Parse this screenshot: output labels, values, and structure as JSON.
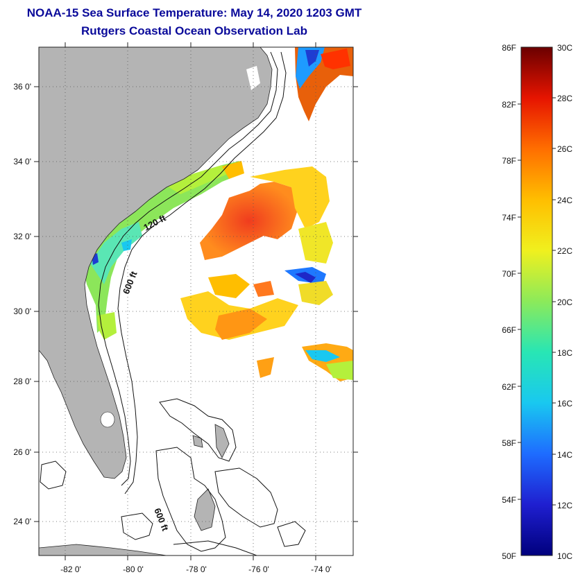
{
  "title_line1": "NOAA-15 Sea Surface Temperature:  May 14, 2020 1203 GMT",
  "title_line2": "Rutgers Coastal Ocean Observation Lab",
  "map": {
    "lon_range": [
      -83.0,
      -72.9
    ],
    "lat_range": [
      23.0,
      37.1
    ],
    "lon_ticks": [
      {
        "value": -82,
        "label": "-82 0'"
      },
      {
        "value": -80,
        "label": "-80 0'"
      },
      {
        "value": -78,
        "label": "-78 0'"
      },
      {
        "value": -76,
        "label": "-76 0'"
      },
      {
        "value": -74,
        "label": "-74 0'"
      }
    ],
    "lat_ticks": [
      {
        "value": 36,
        "label": "36 0'"
      },
      {
        "value": 34,
        "label": "34 0'"
      },
      {
        "value": 32,
        "label": "32 0'"
      },
      {
        "value": 30,
        "label": "30 0'"
      },
      {
        "value": 28,
        "label": "28 0'"
      },
      {
        "value": 26,
        "label": "26 0'"
      },
      {
        "value": 24,
        "label": "24 0'"
      }
    ],
    "grid": "dotted",
    "land_color": "#b4b4b4",
    "isobath_labels": [
      "120 ft",
      "600 ft",
      "600 ft"
    ]
  },
  "colorbar": {
    "fahrenheit_labels": [
      "86F",
      "82F",
      "78F",
      "74F",
      "70F",
      "66F",
      "62F",
      "58F",
      "54F",
      "50F"
    ],
    "celsius_labels": [
      "30C",
      "28C",
      "26C",
      "24C",
      "22C",
      "20C",
      "18C",
      "16C",
      "14C",
      "12C",
      "10C"
    ],
    "colors": [
      "#6b0000",
      "#c80000",
      "#ff3c00",
      "#ff8c00",
      "#ffd200",
      "#d2f03c",
      "#5ae68c",
      "#19dcdc",
      "#1e78ff",
      "#2828d2",
      "#00007d"
    ]
  }
}
